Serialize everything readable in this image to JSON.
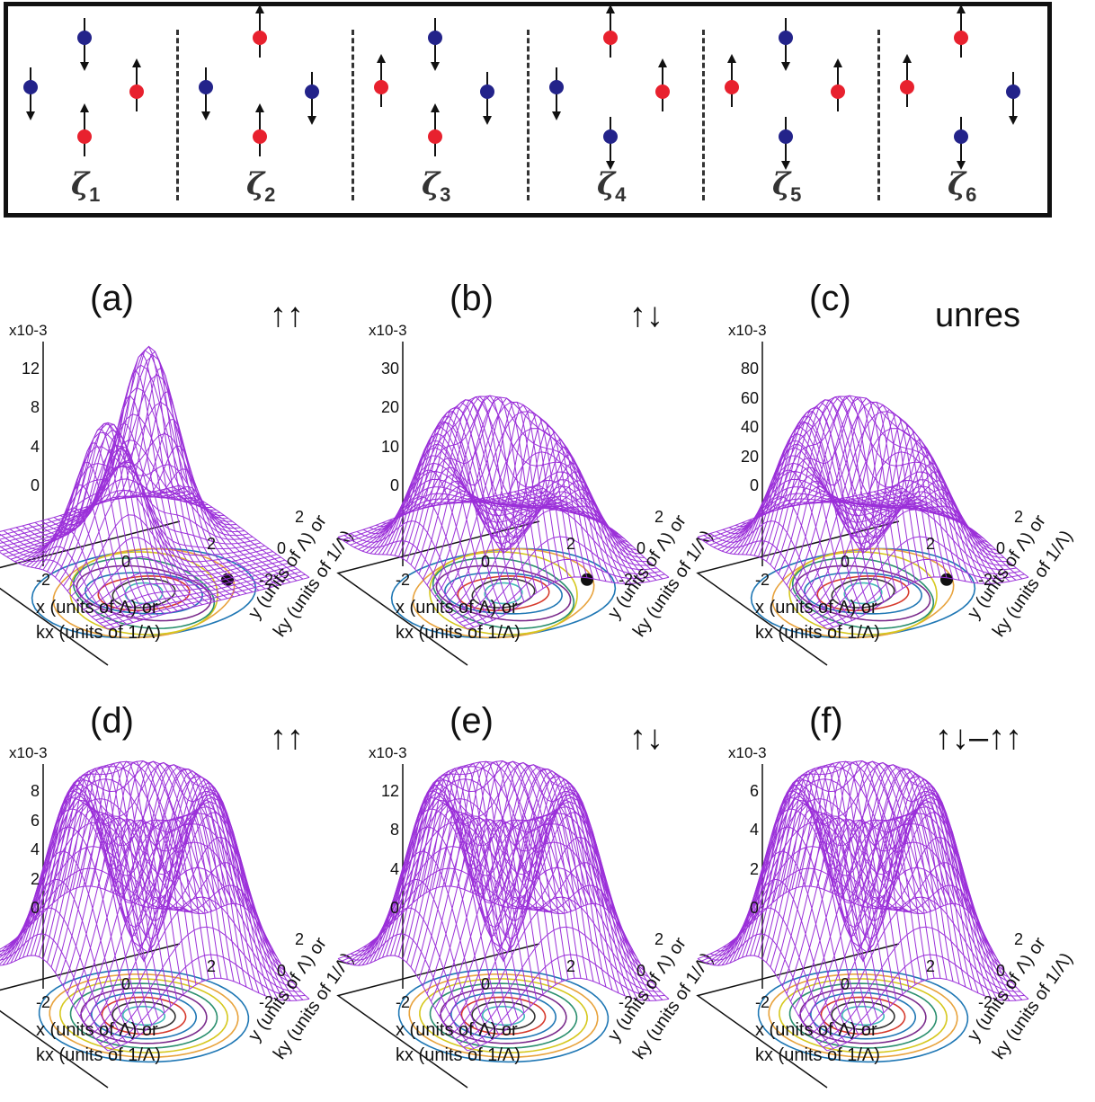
{
  "configs": {
    "labels": [
      "1",
      "2",
      "3",
      "4",
      "5",
      "6"
    ],
    "symbol": "ζ",
    "spin_up_color": "#e8212e",
    "spin_down_color": "#23238a",
    "sites": [
      [
        "down",
        "down",
        "up",
        "up"
      ],
      [
        "up",
        "down",
        "down",
        "up"
      ],
      [
        "down",
        "up",
        "down",
        "up"
      ],
      [
        "up",
        "down",
        "up",
        "down"
      ],
      [
        "down",
        "up",
        "up",
        "down"
      ],
      [
        "up",
        "up",
        "down",
        "down"
      ]
    ]
  },
  "panels": [
    {
      "label": "(a)",
      "spin": "↑↑",
      "exp": "x10-3",
      "ticks": [
        "12",
        "8",
        "4",
        "0"
      ],
      "type": "two-peak"
    },
    {
      "label": "(b)",
      "spin": "↑↓",
      "exp": "x10-3",
      "ticks": [
        "30",
        "20",
        "10",
        "0"
      ],
      "type": "crescent"
    },
    {
      "label": "(c)",
      "spin": "unres",
      "exp": "x10-3",
      "ticks": [
        "80",
        "60",
        "40",
        "20",
        "0"
      ],
      "type": "crescent"
    },
    {
      "label": "(d)",
      "spin": "↑↑",
      "exp": "x10-3",
      "ticks": [
        "8",
        "6",
        "4",
        "2",
        "0"
      ],
      "type": "ring"
    },
    {
      "label": "(e)",
      "spin": "↑↓",
      "exp": "x10-3",
      "ticks": [
        "12",
        "8",
        "4",
        "0"
      ],
      "type": "ring"
    },
    {
      "label": "(f)",
      "spin": "↑↓–↑↑",
      "exp": "x10-3",
      "ticks": [
        "6",
        "4",
        "2",
        "0"
      ],
      "type": "ring"
    }
  ],
  "axes": {
    "x_label": "x (units of Λ) or",
    "kx_label": "kx (units of 1/Λ)",
    "y_label": "y (units of Λ) or",
    "ky_label": "ky (units of 1/Λ)",
    "x_ticks": [
      "-2",
      "0",
      "2"
    ],
    "y_ticks": [
      "2",
      "0",
      "-2"
    ]
  },
  "colors": {
    "surface": "#9b30d9",
    "marker": "#111111"
  }
}
